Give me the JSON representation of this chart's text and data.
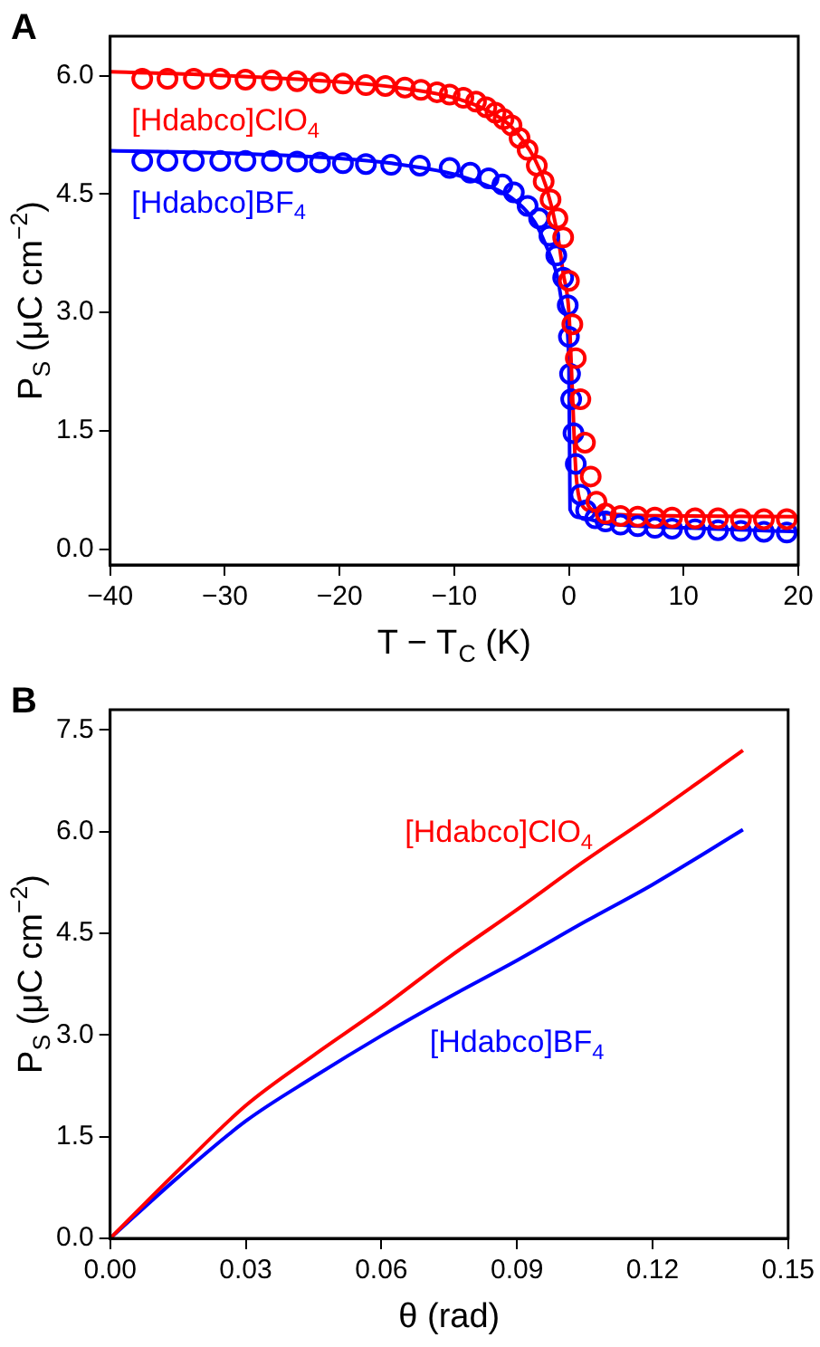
{
  "chart_data": [
    {
      "type": "scatter",
      "annotations": [
        "A"
      ],
      "xlabel": "T − T$_{C}$ (K)",
      "ylabel": "P$_{S}$ (μC cm$^{−2}$)",
      "xlim": [
        -40,
        20
      ],
      "xticks": [
        {
          "value": -40,
          "label": "−40"
        },
        {
          "value": -30,
          "label": "−30"
        },
        {
          "value": -20,
          "label": "−20"
        },
        {
          "value": -10,
          "label": "−10"
        },
        0,
        10,
        20
      ],
      "ylim": [
        -0.2,
        6.5
      ],
      "yticks": [
        {
          "value": 0,
          "label": "0.0"
        },
        {
          "value": 1.5,
          "label": "1.5"
        },
        {
          "value": 3,
          "label": "3.0"
        },
        {
          "value": 4.5,
          "label": "4.5"
        },
        {
          "value": 6,
          "label": "6.0"
        }
      ],
      "series": [
        {
          "name": "[Hdabco]ClO$_{4}$",
          "type": "scatter",
          "marker": "circle",
          "color": "#ff0000",
          "x": [
            -37.2,
            -35,
            -32.7,
            -30.4,
            -28.2,
            -25.9,
            -23.7,
            -21.7,
            -19.7,
            -17.7,
            -16,
            -14.3,
            -12.9,
            -11.5,
            -10.4,
            -9.2,
            -8.1,
            -7.2,
            -6.4,
            -5.7,
            -5,
            -4.3,
            -3.6,
            -2.8,
            -2.2,
            -1.6,
            -1,
            -0.5,
            0,
            0.3,
            0.6,
            1,
            1.4,
            1.9,
            2.4,
            3.2,
            4.5,
            6,
            7.5,
            9,
            11,
            13,
            15,
            17,
            19
          ],
          "values": [
            5.96,
            5.96,
            5.96,
            5.96,
            5.95,
            5.94,
            5.93,
            5.91,
            5.9,
            5.88,
            5.87,
            5.85,
            5.82,
            5.79,
            5.76,
            5.72,
            5.67,
            5.6,
            5.53,
            5.45,
            5.37,
            5.21,
            5.06,
            4.86,
            4.66,
            4.43,
            4.19,
            3.95,
            3.4,
            2.85,
            2.42,
            1.9,
            1.35,
            0.92,
            0.6,
            0.45,
            0.42,
            0.41,
            0.4,
            0.4,
            0.39,
            0.39,
            0.38,
            0.38,
            0.38
          ]
        },
        {
          "type": "line",
          "marker": "none",
          "color": "#ff0000",
          "x": [
            -40,
            -30,
            -20,
            -15,
            -10,
            -7,
            -5,
            -3,
            -2,
            -1,
            -0.5,
            0,
            0.3,
            0.6,
            1,
            2,
            4,
            10,
            20
          ],
          "values": [
            6.05,
            6.0,
            5.92,
            5.85,
            5.72,
            5.55,
            5.35,
            4.95,
            4.6,
            4.0,
            3.5,
            3.0,
            2.0,
            1.0,
            0.6,
            0.48,
            0.44,
            0.42,
            0.41
          ]
        },
        {
          "name": "[Hdabco]BF$_{4}$",
          "type": "scatter",
          "marker": "circle",
          "color": "#0000ff",
          "x": [
            -37.2,
            -35,
            -32.7,
            -30.4,
            -28.2,
            -25.9,
            -23.7,
            -21.7,
            -19.7,
            -17.7,
            -15.5,
            -13,
            -10.4,
            -8.6,
            -7,
            -5.8,
            -4.8,
            -3.6,
            -2.6,
            -1.7,
            -1.1,
            -0.5,
            -0.1,
            0,
            0.1,
            0.2,
            0.4,
            0.6,
            1,
            1.5,
            2.3,
            3.2,
            4.5,
            6,
            7.5,
            9,
            11,
            13,
            15,
            17,
            19
          ],
          "values": [
            4.92,
            4.92,
            4.92,
            4.92,
            4.92,
            4.92,
            4.91,
            4.9,
            4.89,
            4.88,
            4.87,
            4.86,
            4.83,
            4.77,
            4.7,
            4.62,
            4.52,
            4.35,
            4.19,
            3.97,
            3.72,
            3.44,
            3.09,
            2.69,
            2.22,
            1.9,
            1.47,
            1.08,
            0.69,
            0.49,
            0.39,
            0.35,
            0.31,
            0.29,
            0.27,
            0.26,
            0.25,
            0.24,
            0.23,
            0.22,
            0.21
          ]
        },
        {
          "type": "line",
          "marker": "none",
          "color": "#0000ff",
          "x": [
            -40,
            -30,
            -20,
            -15,
            -10,
            -7,
            -5,
            -3,
            -2,
            -1,
            -0.5,
            0,
            0.1,
            1,
            3,
            10,
            20
          ],
          "values": [
            5.05,
            5.02,
            4.95,
            4.88,
            4.75,
            4.6,
            4.45,
            4.15,
            3.85,
            3.45,
            3.05,
            2.4,
            0.5,
            0.4,
            0.33,
            0.27,
            0.22
          ]
        }
      ]
    },
    {
      "type": "line",
      "annotations": [
        "B"
      ],
      "xlabel": "θ (rad)",
      "ylabel": "P$_{S}$ (μC cm$^{−2}$)",
      "xlim": [
        0,
        0.15
      ],
      "xticks": [
        {
          "value": 0,
          "label": "0.00"
        },
        0.03,
        0.06,
        0.09,
        0.12,
        {
          "value": 0.15,
          "label": "0.15"
        }
      ],
      "ylim": [
        0,
        7.8
      ],
      "yticks": [
        {
          "value": 0,
          "label": "0.0"
        },
        1.5,
        {
          "value": 3,
          "label": "3.0"
        },
        4.5,
        {
          "value": 6,
          "label": "6.0"
        },
        7.5
      ],
      "series": [
        {
          "name": "[Hdabco]ClO$_{4}$",
          "color": "#ff0000",
          "x": [
            0,
            0.015,
            0.03,
            0.045,
            0.06,
            0.075,
            0.09,
            0.105,
            0.12,
            0.14
          ],
          "values": [
            0,
            1.0,
            1.96,
            2.7,
            3.4,
            4.15,
            4.85,
            5.57,
            6.25,
            7.2
          ]
        },
        {
          "name": "[Hdabco]BF$_{4}$",
          "color": "#0000ff",
          "x": [
            0,
            0.015,
            0.03,
            0.045,
            0.06,
            0.075,
            0.09,
            0.105,
            0.12,
            0.14
          ],
          "values": [
            0,
            0.9,
            1.73,
            2.38,
            2.99,
            3.56,
            4.1,
            4.67,
            5.22,
            6.03
          ]
        }
      ]
    }
  ]
}
